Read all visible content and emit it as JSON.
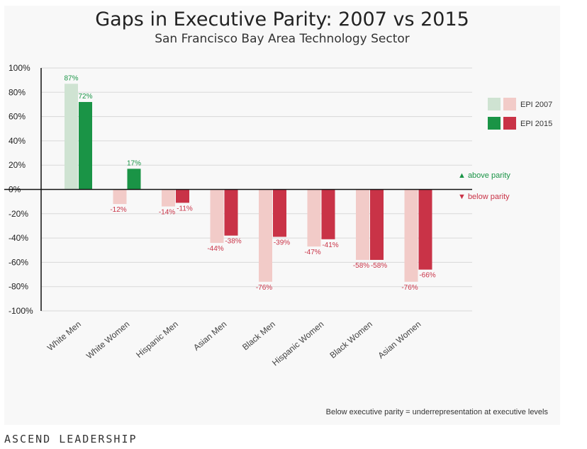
{
  "brand": "ASCEND LEADERSHIP",
  "chart_data": {
    "type": "bar",
    "title": "Gaps in Executive Parity: 2007 vs 2015",
    "subtitle": "San Francisco Bay Area Technology Sector",
    "categories": [
      "White Men",
      "White Women",
      "Hispanic Men",
      "Asian Men",
      "Black Men",
      "Hispanic Women",
      "Black Women",
      "Asian Women"
    ],
    "series": [
      {
        "name": "EPI 2007",
        "values": [
          87,
          -12,
          -14,
          -44,
          -76,
          -47,
          -58,
          -76
        ],
        "labels": [
          "87%",
          "-12%",
          "-14%",
          "-44%",
          "-76%",
          "-47%",
          "-58%",
          "-76%"
        ]
      },
      {
        "name": "EPI 2015",
        "values": [
          72,
          17,
          -11,
          -38,
          -39,
          -41,
          -58,
          -66
        ],
        "labels": [
          "72%",
          "17%",
          "-11%",
          "-38%",
          "-39%",
          "-41%",
          "-58%",
          "-66%"
        ]
      }
    ],
    "ylim": [
      -100,
      100
    ],
    "yticks": [
      100,
      80,
      60,
      40,
      20,
      0,
      -20,
      -40,
      -60,
      -80,
      -100
    ],
    "ytick_labels": [
      "100%",
      "80%",
      "60%",
      "40%",
      "20%",
      "0%",
      "-20%",
      "-40%",
      "-60%",
      "-80%",
      "-100%"
    ],
    "grid": true,
    "legend_position": "right",
    "annotations": {
      "above": "▲ above parity",
      "below": "▼ below parity"
    },
    "footnote": "Below executive parity = underrepresentation at executive levels",
    "colors": {
      "pos2007": "#cfe3d2",
      "pos2015": "#1a9446",
      "neg2007": "#f2cbc8",
      "neg2015": "#c93347",
      "above_text": "#1a9446",
      "below_text": "#c93347"
    }
  }
}
